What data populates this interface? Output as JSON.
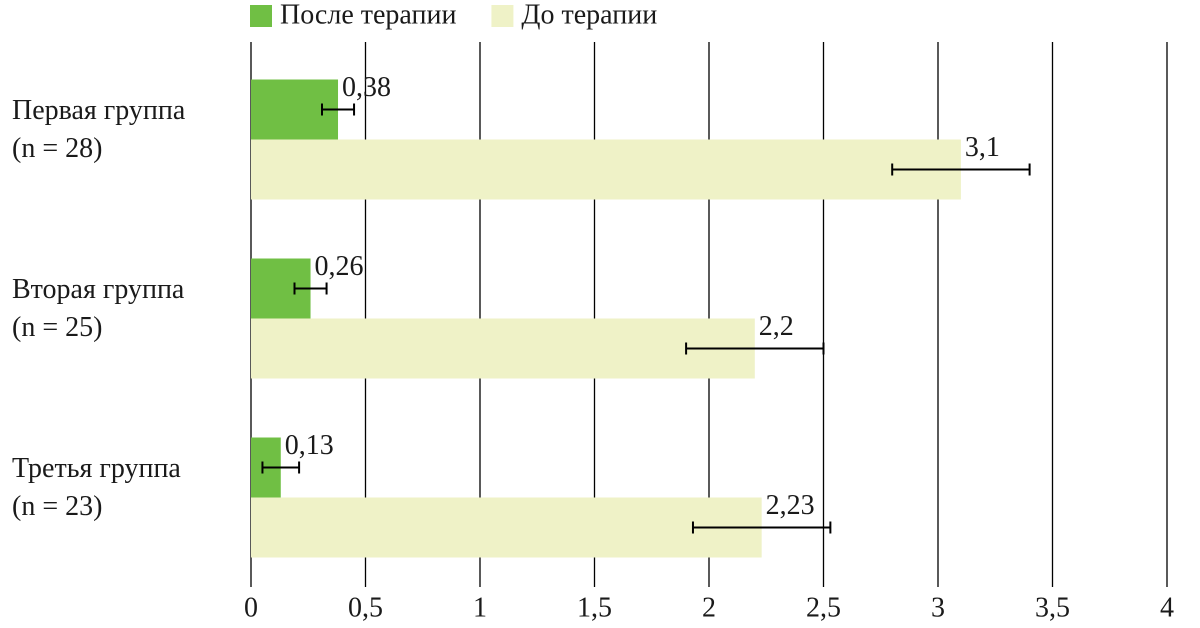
{
  "chart_data": {
    "type": "bar",
    "orientation": "horizontal",
    "categories": [
      [
        "Первая группа",
        "(n = 28)"
      ],
      [
        "Вторая группа",
        "(n = 25)"
      ],
      [
        "Третья группа",
        "(n = 23)"
      ]
    ],
    "series": [
      {
        "name": "После терапии",
        "color": "#70bf44",
        "values": [
          0.38,
          0.26,
          0.13
        ],
        "value_labels": [
          "0,38",
          "0,26",
          "0,13"
        ],
        "errors": [
          0.07,
          0.07,
          0.08
        ]
      },
      {
        "name": "До терапии",
        "color": "#eff2c7",
        "values": [
          3.1,
          2.2,
          2.23
        ],
        "value_labels": [
          "3,1",
          "2,2",
          "2,23"
        ],
        "errors": [
          0.3,
          0.3,
          0.3
        ]
      }
    ],
    "xlim": [
      0,
      4
    ],
    "xticks": [
      0,
      {
        "value": 0.5,
        "label": "0,5"
      },
      1,
      {
        "value": 1.5,
        "label": "1,5"
      },
      2,
      {
        "value": 2.5,
        "label": "2,5"
      },
      3,
      {
        "value": 3.5,
        "label": "3,5"
      },
      4
    ],
    "grid": true,
    "legend": "top"
  }
}
